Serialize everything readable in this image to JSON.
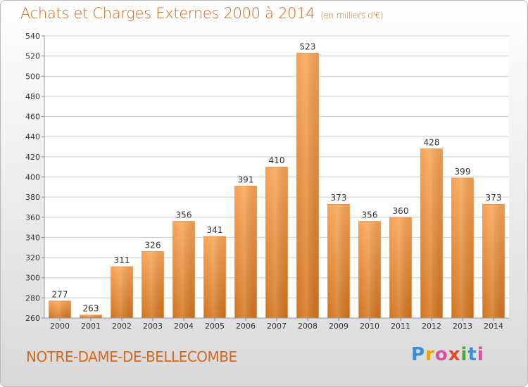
{
  "chart_data": {
    "type": "bar",
    "title": "Achats et Charges Externes 2000 à 2014",
    "subtitle": "(en milliers d'€)",
    "categories": [
      "2000",
      "2001",
      "2002",
      "2003",
      "2004",
      "2005",
      "2006",
      "2007",
      "2008",
      "2009",
      "2010",
      "2011",
      "2012",
      "2013",
      "2014"
    ],
    "values": [
      277,
      263,
      311,
      326,
      356,
      341,
      391,
      410,
      523,
      373,
      356,
      360,
      428,
      399,
      373
    ],
    "ylim": [
      260,
      540
    ],
    "yticks": [
      260,
      280,
      300,
      320,
      340,
      360,
      380,
      400,
      420,
      440,
      460,
      480,
      500,
      520,
      540
    ],
    "grid": true,
    "bar_color": "#f0953f",
    "xlabel": "",
    "ylabel": ""
  },
  "footer": {
    "name": "NOTRE-DAME-DE-BELLECOMBE",
    "logo": "Proxiti"
  }
}
